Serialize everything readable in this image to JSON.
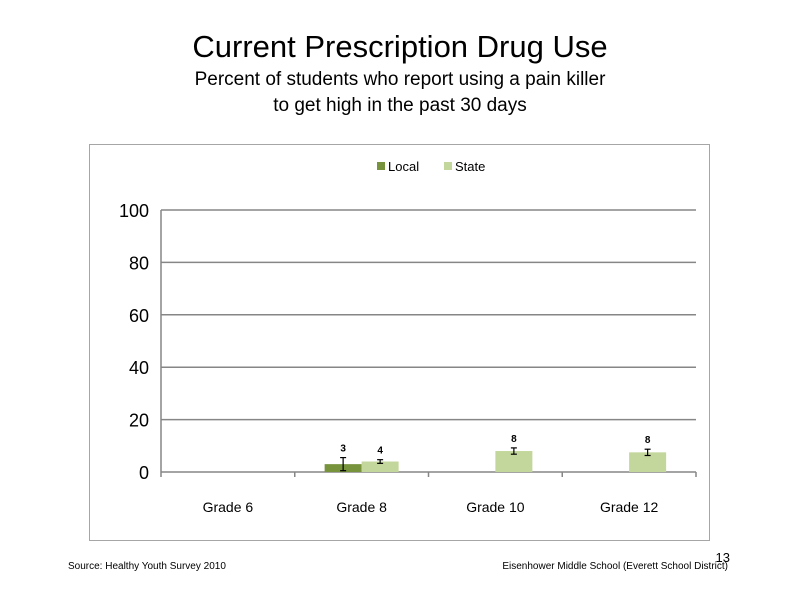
{
  "slide": {
    "title": "Current Prescription Drug Use",
    "subtitle_line1": "Percent of students who report using a pain killer",
    "subtitle_line2": "to get high in the past 30 days",
    "source": "Source: Healthy Youth Survey 2010",
    "school": "Eisenhower Middle  School (Everett School District)",
    "page_number": "13"
  },
  "chart_data": {
    "type": "bar",
    "categories": [
      "Grade 6",
      "Grade 8",
      "Grade 10",
      "Grade 12"
    ],
    "series": [
      {
        "name": "Local",
        "color": "#77933c",
        "values": [
          null,
          3,
          null,
          null
        ],
        "labels": [
          "",
          "3",
          "",
          ""
        ],
        "error": [
          null,
          [
            0.5,
            5.5
          ],
          null,
          null
        ]
      },
      {
        "name": "State",
        "color": "#c3d69b",
        "values": [
          null,
          4,
          8,
          7.5
        ],
        "labels": [
          "",
          "4",
          "8",
          "8"
        ],
        "error": [
          null,
          [
            3.3,
            4.7
          ],
          [
            6.8,
            9.2
          ],
          [
            6.3,
            8.7
          ]
        ]
      }
    ],
    "ylim": [
      0,
      100
    ],
    "yticks": [
      0,
      20,
      40,
      60,
      80,
      100
    ],
    "legend_position": "top-center",
    "grid": true
  }
}
